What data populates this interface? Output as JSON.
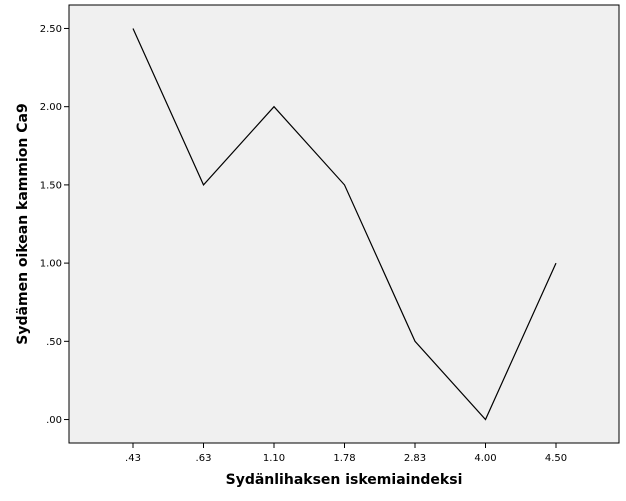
{
  "chart_data": {
    "type": "line",
    "categories": [
      ".43",
      ".63",
      "1.10",
      "1.78",
      "2.83",
      "4.00",
      "4.50"
    ],
    "series": [
      {
        "values": [
          2.5,
          1.5,
          2.0,
          1.5,
          0.5,
          0.0,
          1.0
        ]
      }
    ],
    "y_ticks": [
      ".00",
      ".50",
      "1.00",
      "1.50",
      "2.00",
      "2.50"
    ],
    "y_tick_values": [
      0,
      0.5,
      1.0,
      1.5,
      2.0,
      2.5
    ],
    "xlabel": "Sydänlihaksen iskemiaindeksi",
    "ylabel": "Sydämen oikean kammion Ca9",
    "ylim": [
      -0.15,
      2.65
    ],
    "grid": false,
    "colors": {
      "plot_bg": "#f0f0f0",
      "line": "#000000",
      "frame": "#000000"
    }
  }
}
